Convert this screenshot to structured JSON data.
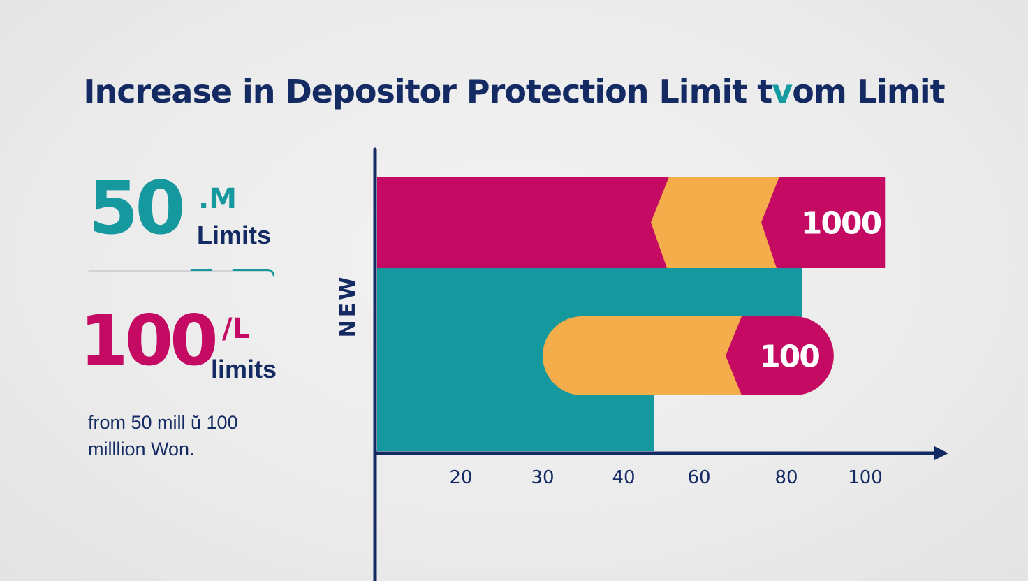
{
  "title": {
    "part1": "Increase in Depositor Protection Limit t",
    "part2": "v",
    "part3": "om  Limit"
  },
  "stats": {
    "old": {
      "value": "50",
      "unit": ".M",
      "label": "Limits"
    },
    "new": {
      "value": "100",
      "unit": "/L",
      "label": "limits"
    },
    "caption": "from 50 mill ŭ 100 milllion Won."
  },
  "colors": {
    "navy": "#142a63",
    "teal": "#16989f",
    "magenta": "#c40a63",
    "orange": "#f3ae4b"
  },
  "chart_data": {
    "type": "bar",
    "orientation": "horizontal",
    "ylabel": "NEW",
    "x_ticks": [
      "20",
      "30",
      "40",
      "60",
      "80",
      "100"
    ],
    "bars": [
      {
        "label": "1000",
        "end_tick": 105,
        "segments": [
          "magenta",
          "orange",
          "magenta"
        ],
        "shape": "rect"
      },
      {
        "label": "",
        "end_tick": 84,
        "segments": [
          "teal"
        ],
        "shape": "rect"
      },
      {
        "label": "",
        "end_tick": 48,
        "segments": [
          "teal"
        ],
        "shape": "rect"
      },
      {
        "label": "100",
        "start_tick": 30,
        "end_tick": 92,
        "segments": [
          "orange",
          "magenta"
        ],
        "shape": "pill"
      }
    ]
  }
}
